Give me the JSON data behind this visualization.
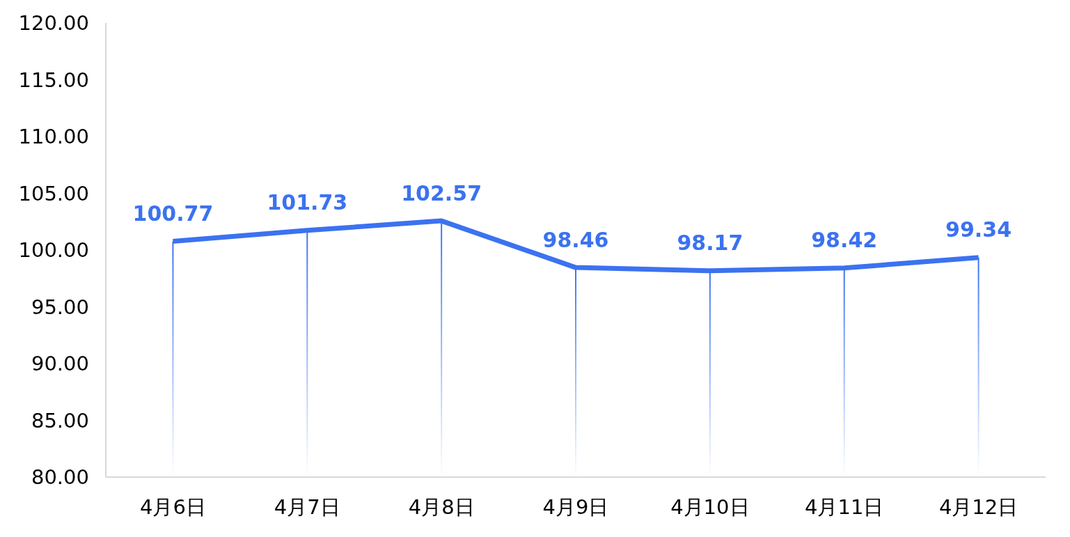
{
  "chart_data": {
    "type": "line",
    "categories": [
      "4月6日",
      "4月7日",
      "4月8日",
      "4月9日",
      "4月10日",
      "4月11日",
      "4月12日"
    ],
    "series": [
      {
        "color": "#3b72f0",
        "values": [
          100.77,
          101.73,
          102.57,
          98.46,
          98.17,
          98.42,
          99.34
        ]
      }
    ],
    "ylim": [
      80,
      120
    ],
    "yticks": [
      {
        "value": 80,
        "label": "80.00"
      },
      {
        "value": 85,
        "label": "85.00"
      },
      {
        "value": 90,
        "label": "90.00"
      },
      {
        "value": 95,
        "label": "95.00"
      },
      {
        "value": 100,
        "label": "100.00"
      },
      {
        "value": 105,
        "label": "105.00"
      },
      {
        "value": 110,
        "label": "110.00"
      },
      {
        "value": 115,
        "label": "115.00"
      },
      {
        "value": 120,
        "label": "120.00"
      }
    ],
    "data_labels": true,
    "grid": false,
    "marker": "none"
  }
}
